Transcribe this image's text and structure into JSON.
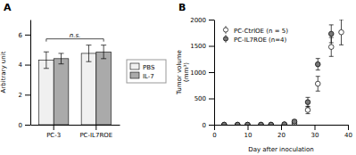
{
  "chart_data": [
    {
      "type": "bar",
      "title": "A",
      "categories": [
        "PC-3",
        "PC-IL7ROE"
      ],
      "series": [
        {
          "name": "PBS",
          "color": "#f0f0f0",
          "values": [
            4.3,
            4.75
          ],
          "errors": [
            0.55,
            0.55
          ]
        },
        {
          "name": "IL-7",
          "color": "#aaaaaa",
          "values": [
            4.4,
            4.85
          ],
          "errors": [
            0.35,
            0.45
          ]
        }
      ],
      "ylabel": "Arbitrary unit",
      "ylim": [
        0,
        7
      ],
      "yticks": [
        0,
        2,
        4,
        6
      ],
      "annotations": [
        "n.s."
      ],
      "legend": "right",
      "grid": false
    },
    {
      "type": "scatter",
      "title": "B",
      "xlabel": "Day after inoculation",
      "ylabel": "Tumor volume\n(mm³)",
      "xlim": [
        0,
        40
      ],
      "xticks": [
        0,
        10,
        20,
        30,
        40
      ],
      "ylim": [
        0,
        2000
      ],
      "yticks": [
        0,
        500,
        1000,
        1500,
        2000
      ],
      "legend": "upper left",
      "grid": false,
      "marker": "circle",
      "series": [
        {
          "name": "PC-CtrlOE (n = 5)",
          "color": "#ffffff",
          "x": [
            3,
            7,
            10,
            14,
            17,
            21,
            24,
            28,
            31,
            35,
            38
          ],
          "values": [
            0,
            0,
            0,
            0,
            0,
            5,
            30,
            280,
            780,
            1480,
            1760
          ],
          "errors": [
            0,
            0,
            0,
            0,
            0,
            3,
            20,
            70,
            140,
            180,
            240
          ]
        },
        {
          "name": "PC-IL7ROE (n=4)",
          "color": "#777777",
          "x": [
            3,
            7,
            10,
            14,
            17,
            21,
            24,
            28,
            31,
            35
          ],
          "values": [
            0,
            0,
            0,
            0,
            0,
            8,
            60,
            430,
            1150,
            1730
          ],
          "errors": [
            0,
            0,
            0,
            0,
            0,
            4,
            35,
            90,
            110,
            170
          ]
        }
      ]
    }
  ]
}
